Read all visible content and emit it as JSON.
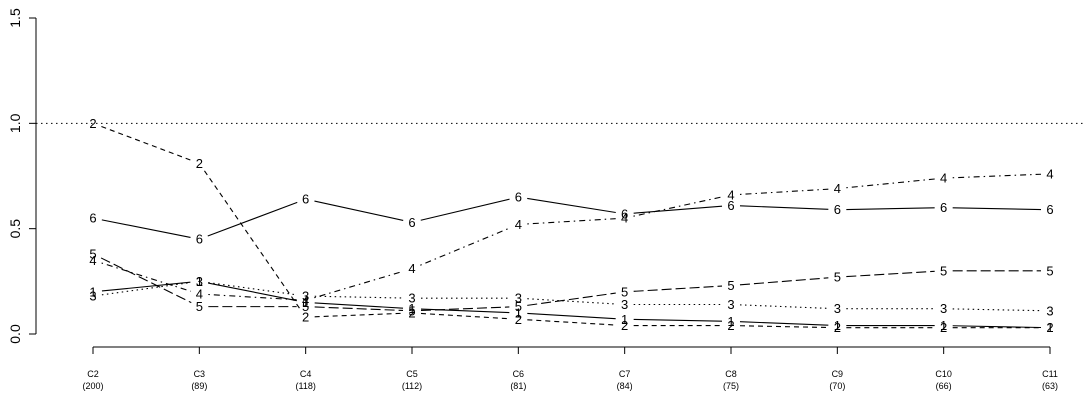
{
  "chart_data": {
    "type": "line",
    "categories": [
      "C2",
      "C3",
      "C4",
      "C5",
      "C6",
      "C7",
      "C8",
      "C9",
      "C10",
      "C11"
    ],
    "category_counts": [
      "(200)",
      "(89)",
      "(118)",
      "(112)",
      "(81)",
      "(84)",
      "(75)",
      "(70)",
      "(66)",
      "(63)"
    ],
    "ylim": [
      0,
      1.5
    ],
    "yticks": [
      "0.0",
      "0.5",
      "1.0",
      "1.5"
    ],
    "reference_line": 1.0,
    "grid": false,
    "legend": "none",
    "series": [
      {
        "label": "1",
        "linestyle": "solid",
        "values": [
          0.2,
          0.25,
          0.15,
          0.12,
          0.1,
          0.07,
          0.06,
          0.04,
          0.04,
          0.03
        ]
      },
      {
        "label": "2",
        "linestyle": "dashed",
        "values": [
          1.0,
          0.81,
          0.08,
          0.1,
          0.07,
          0.04,
          0.04,
          0.03,
          0.03,
          0.03
        ]
      },
      {
        "label": "3",
        "linestyle": "dotted",
        "values": [
          0.18,
          0.25,
          0.18,
          0.17,
          0.17,
          0.14,
          0.14,
          0.12,
          0.12,
          0.11
        ]
      },
      {
        "label": "4",
        "linestyle": "dotdash",
        "values": [
          0.35,
          0.19,
          0.16,
          0.31,
          0.52,
          0.55,
          0.66,
          0.69,
          0.74,
          0.76
        ]
      },
      {
        "label": "5",
        "linestyle": "longdash",
        "values": [
          0.38,
          0.13,
          0.13,
          0.11,
          0.13,
          0.2,
          0.23,
          0.27,
          0.3,
          0.3
        ]
      },
      {
        "label": "6",
        "linestyle": "solid",
        "values": [
          0.55,
          0.45,
          0.64,
          0.53,
          0.65,
          0.57,
          0.61,
          0.59,
          0.6,
          0.59
        ]
      }
    ]
  }
}
